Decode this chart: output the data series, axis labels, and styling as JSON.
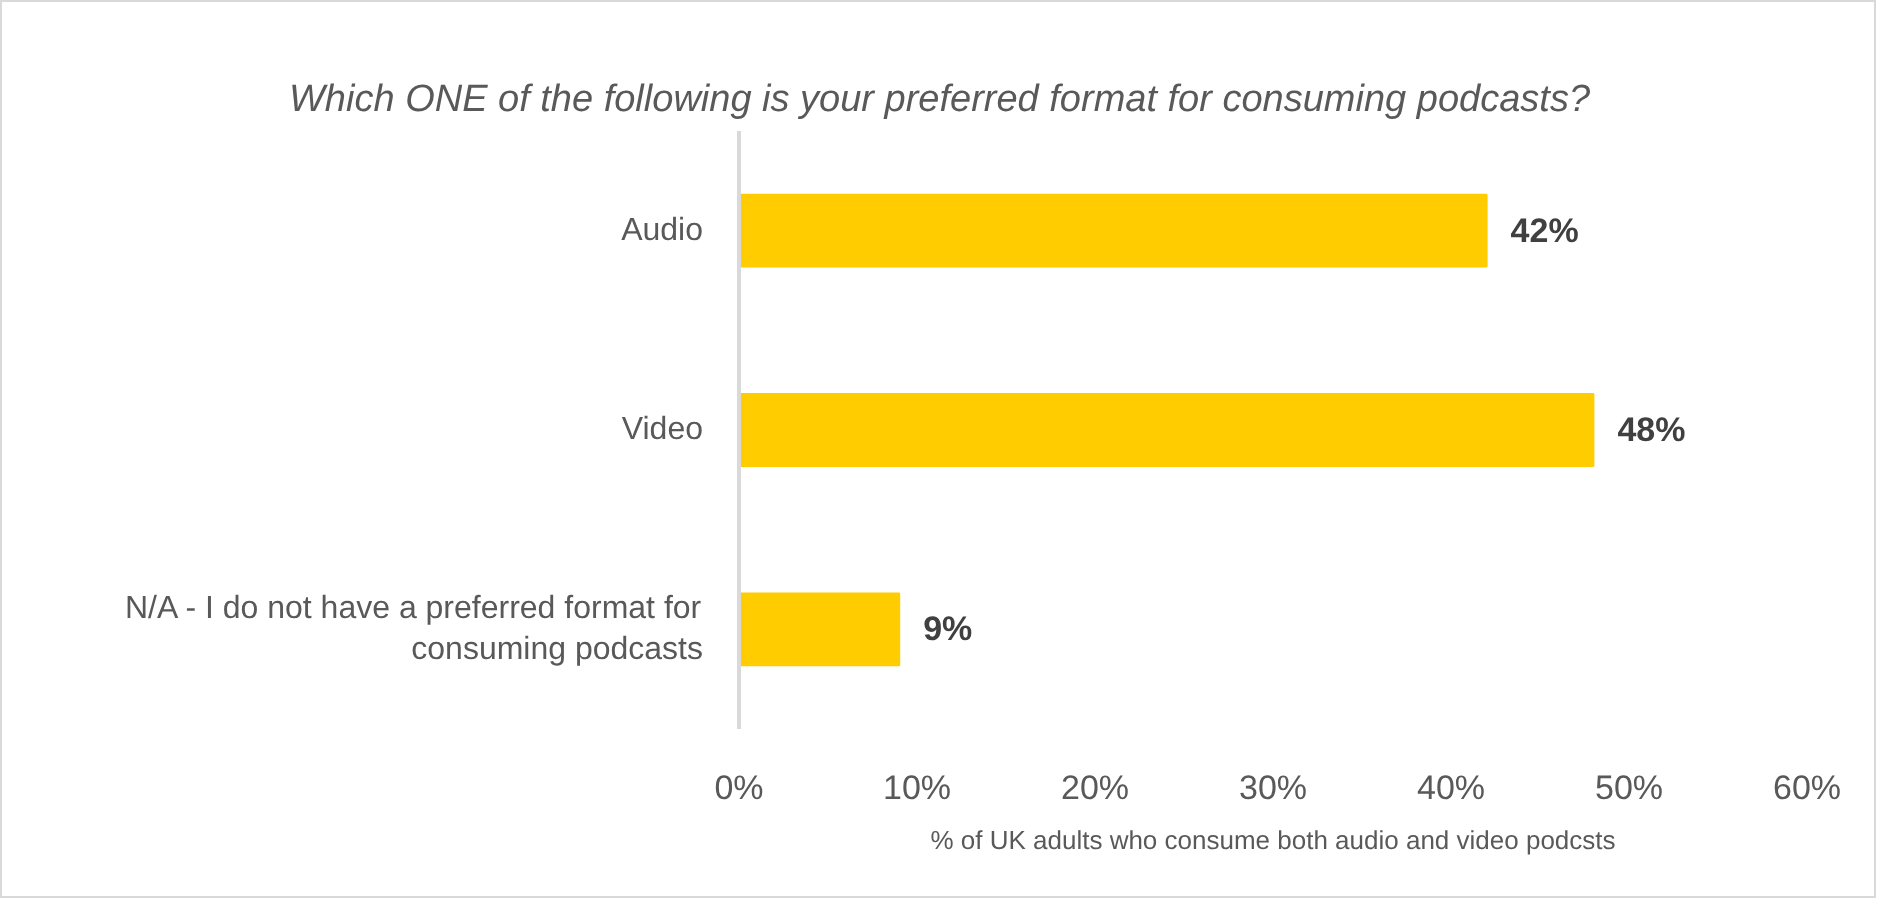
{
  "chart_data": {
    "type": "bar",
    "orientation": "horizontal",
    "title": "Which ONE of the following is your preferred format for consuming podcasts?",
    "xlabel": "% of UK adults who consume both audio and video podcsts",
    "categories": [
      "Audio",
      "Video",
      "N/A - I do not have a preferred format for consuming podcasts"
    ],
    "values": [
      42,
      48,
      9
    ],
    "color": "#ffcc00",
    "value_labels": [
      "42%",
      "48%",
      "9%"
    ],
    "xlim": [
      0,
      60
    ],
    "xticks": [
      {
        "value": 0,
        "label": "0%"
      },
      {
        "value": 10,
        "label": "10%"
      },
      {
        "value": 20,
        "label": "20%"
      },
      {
        "value": 30,
        "label": "30%"
      },
      {
        "value": 40,
        "label": "40%"
      },
      {
        "value": 50,
        "label": "50%"
      },
      {
        "value": 60,
        "label": "60%"
      }
    ],
    "grid": false,
    "legend": false
  }
}
